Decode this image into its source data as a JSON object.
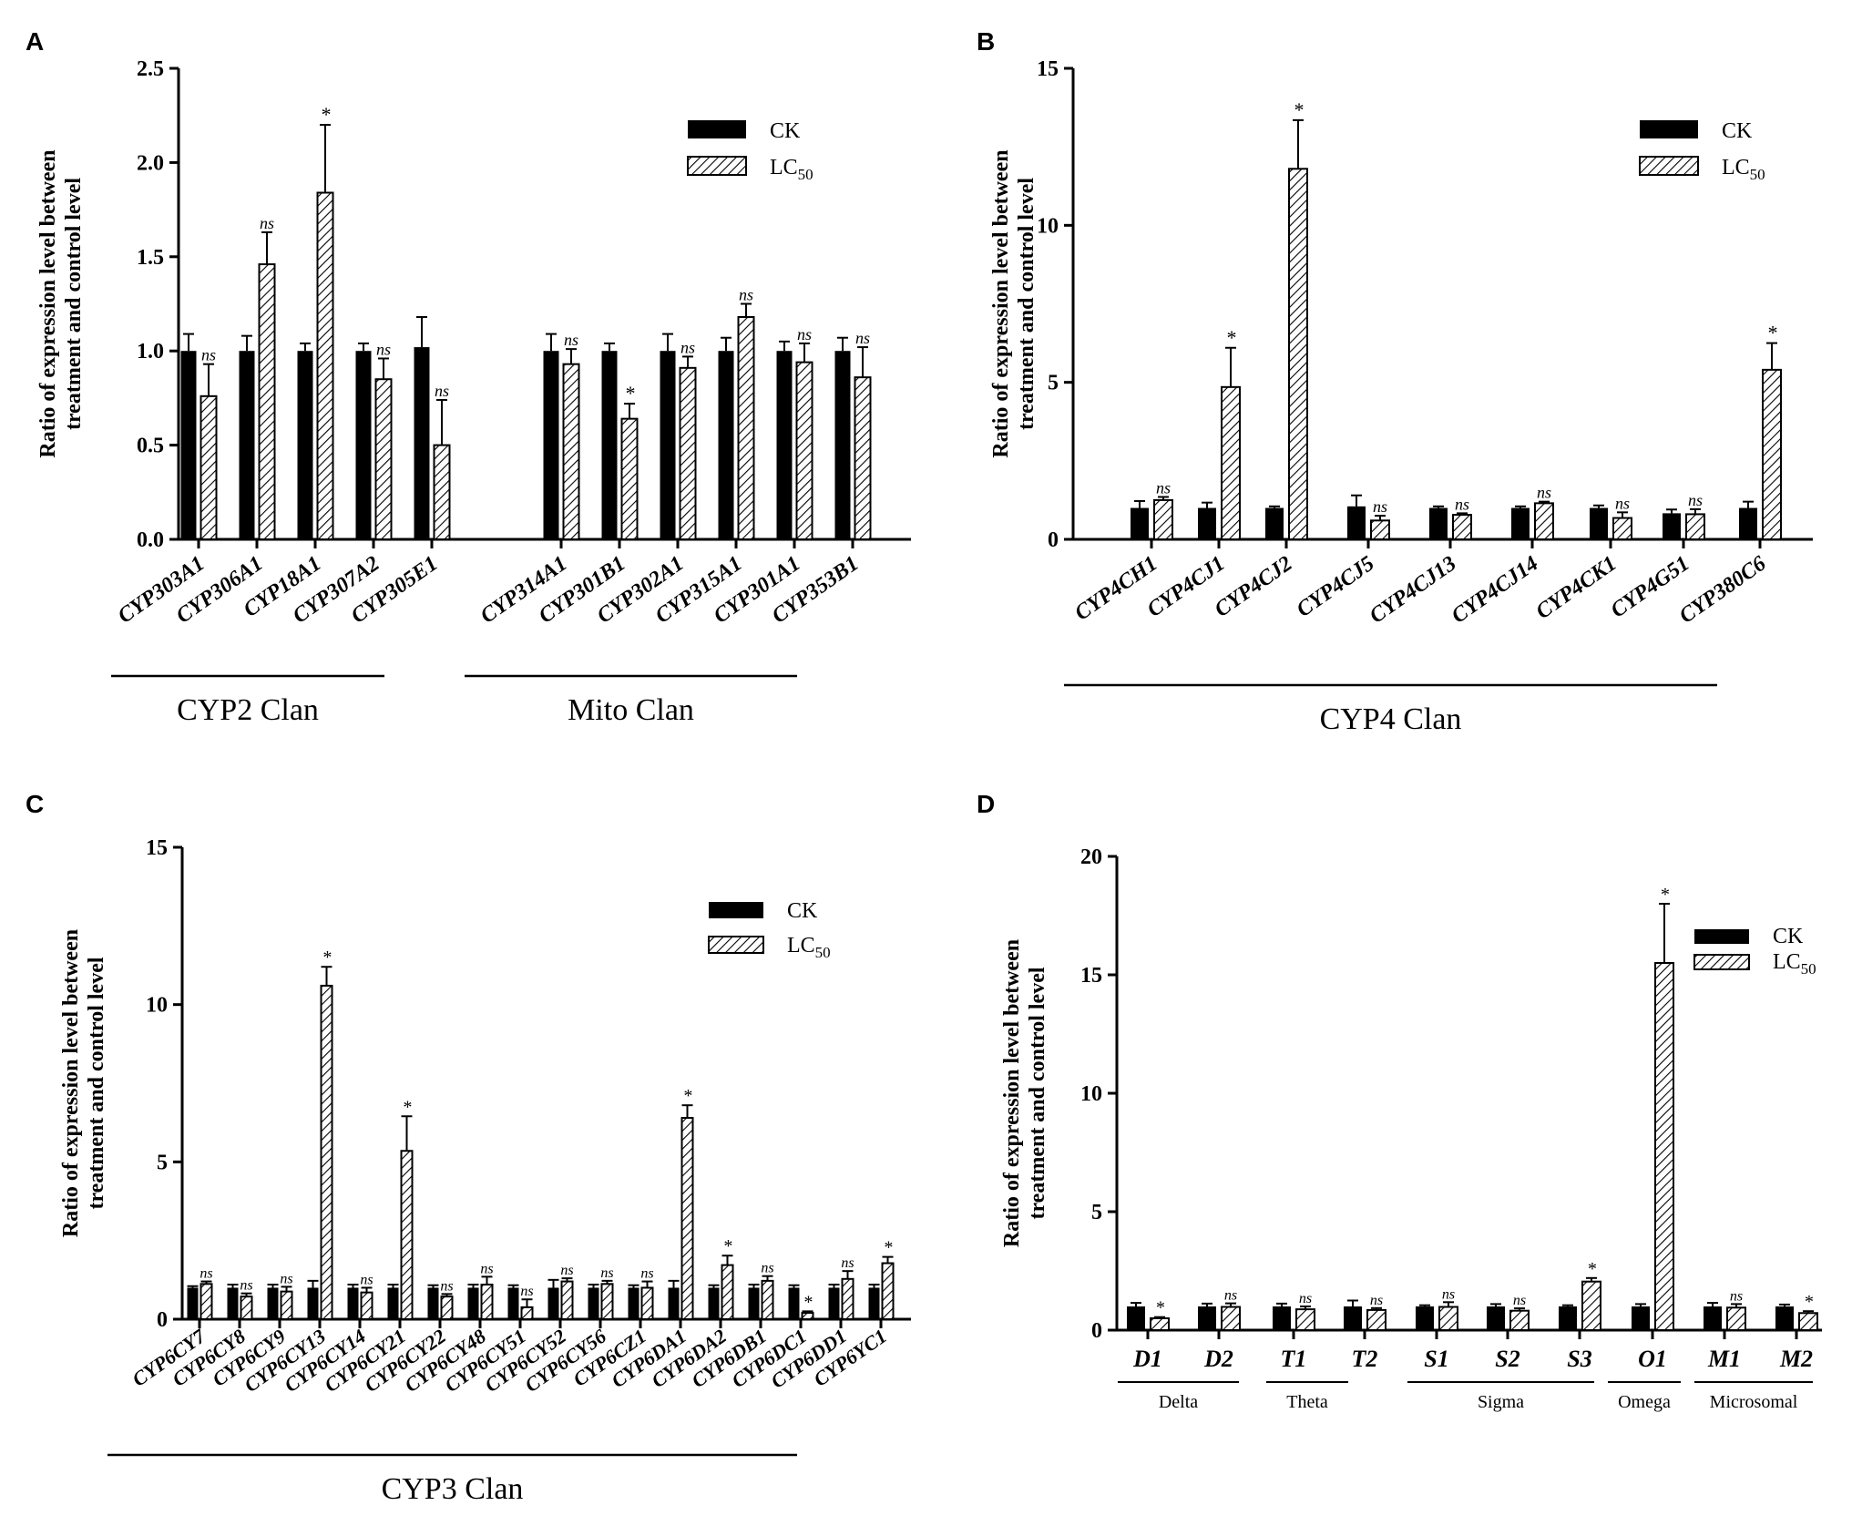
{
  "chart_data": [
    {
      "type": "bar",
      "panel": "A",
      "ylabel_line1": "Ratio of expression level between",
      "ylabel_line2": "treatment and control level",
      "ylim": [
        0,
        2.5
      ],
      "yticks": [
        "0.0",
        "0.5",
        "1.0",
        "1.5",
        "2.0",
        "2.5"
      ],
      "legend": {
        "ck": "CK",
        "lc_main": "LC",
        "lc_sub": "50"
      },
      "categories": [
        "CYP303A1",
        "CYP306A1",
        "CYP18A1",
        "CYP307A2",
        "CYP305E1",
        "CYP314A1",
        "CYP301B1",
        "CYP302A1",
        "CYP315A1",
        "CYP301A1",
        "CYP353B1"
      ],
      "series": [
        {
          "name": "CK",
          "values": [
            1.0,
            1.0,
            1.0,
            1.0,
            1.02,
            1.0,
            1.0,
            1.0,
            1.0,
            1.0,
            1.0
          ],
          "errors": [
            0.09,
            0.08,
            0.04,
            0.04,
            0.16,
            0.09,
            0.04,
            0.09,
            0.07,
            0.05,
            0.07
          ]
        },
        {
          "name": "LC50",
          "values": [
            0.76,
            1.46,
            1.84,
            0.85,
            0.5,
            0.93,
            0.64,
            0.91,
            1.18,
            0.94,
            0.86
          ],
          "errors": [
            0.17,
            0.17,
            0.36,
            0.11,
            0.24,
            0.08,
            0.08,
            0.06,
            0.07,
            0.1,
            0.16
          ]
        }
      ],
      "sig": [
        "ns",
        "ns",
        "*",
        "ns",
        "ns",
        "ns",
        "*",
        "ns",
        "ns",
        "ns",
        "ns"
      ],
      "clans": [
        {
          "label": "CYP2 Clan"
        },
        {
          "label": "Mito Clan"
        }
      ]
    },
    {
      "type": "bar",
      "panel": "B",
      "ylabel_line1": "Ratio of expression level between",
      "ylabel_line2": "treatment and control level",
      "ylim": [
        0,
        15
      ],
      "yticks": [
        "0",
        "5",
        "10",
        "15"
      ],
      "legend": {
        "ck": "CK",
        "lc_main": "LC",
        "lc_sub": "50"
      },
      "categories": [
        "CYP4CH1",
        "CYP4CJ1",
        "CYP4CJ2",
        "CYP4CJ5",
        "CYP4CJ13",
        "CYP4CJ14",
        "CYP4CK1",
        "CYP4G51",
        "CYP380C6"
      ],
      "series": [
        {
          "name": "CK",
          "values": [
            1.0,
            1.0,
            1.0,
            1.05,
            1.0,
            1.0,
            1.0,
            0.83,
            1.0
          ],
          "errors": [
            0.22,
            0.17,
            0.05,
            0.35,
            0.05,
            0.05,
            0.08,
            0.12,
            0.2
          ]
        },
        {
          "name": "LC50",
          "values": [
            1.25,
            4.85,
            11.8,
            0.6,
            0.78,
            1.15,
            0.68,
            0.8,
            5.4
          ],
          "errors": [
            0.1,
            1.25,
            1.55,
            0.15,
            0.05,
            0.05,
            0.18,
            0.16,
            0.85
          ]
        }
      ],
      "sig": [
        "ns",
        "*",
        "*",
        "ns",
        "ns",
        "ns",
        "ns",
        "ns",
        "*"
      ],
      "clans": [
        {
          "label": "CYP4 Clan"
        }
      ]
    },
    {
      "type": "bar",
      "panel": "C",
      "ylabel_line1": "Ratio of expression level between",
      "ylabel_line2": "treatment and control level",
      "ylim": [
        0,
        15
      ],
      "yticks": [
        "0",
        "5",
        "10",
        "15"
      ],
      "legend": {
        "ck": "CK",
        "lc_main": "LC",
        "lc_sub": "50"
      },
      "categories": [
        "CYP6CY7",
        "CYP6CY8",
        "CYP6CY9",
        "CYP6CY13",
        "CYP6CY14",
        "CYP6CY21",
        "CYP6CY22",
        "CYP6CY48",
        "CYP6CY51",
        "CYP6CY52",
        "CYP6CY56",
        "CYP6CZ1",
        "CYP6DA1",
        "CYP6DA2",
        "CYP6DB1",
        "CYP6DC1",
        "CYP6DD1",
        "CYP6YC1"
      ],
      "series": [
        {
          "name": "CK",
          "values": [
            1.0,
            1.0,
            1.0,
            1.0,
            1.0,
            1.0,
            1.0,
            1.0,
            1.0,
            1.0,
            1.0,
            1.0,
            1.0,
            1.0,
            1.0,
            1.0,
            1.0,
            1.0
          ],
          "errors": [
            0.05,
            0.1,
            0.1,
            0.22,
            0.1,
            0.1,
            0.08,
            0.1,
            0.08,
            0.25,
            0.1,
            0.08,
            0.22,
            0.08,
            0.1,
            0.08,
            0.1,
            0.1
          ]
        },
        {
          "name": "LC50",
          "values": [
            1.12,
            0.72,
            0.88,
            10.6,
            0.85,
            5.35,
            0.72,
            1.1,
            0.38,
            1.2,
            1.12,
            1.0,
            6.4,
            1.72,
            1.22,
            0.2,
            1.28,
            1.78
          ],
          "errors": [
            0.08,
            0.1,
            0.15,
            0.6,
            0.15,
            1.1,
            0.08,
            0.25,
            0.25,
            0.1,
            0.1,
            0.2,
            0.4,
            0.3,
            0.15,
            0.05,
            0.25,
            0.2
          ]
        }
      ],
      "sig": [
        "ns",
        "ns",
        "ns",
        "*",
        "ns",
        "*",
        "ns",
        "ns",
        "ns",
        "ns",
        "ns",
        "ns",
        "*",
        "*",
        "ns",
        "*",
        "ns",
        "*"
      ],
      "clans": [
        {
          "label": "CYP3 Clan"
        }
      ]
    },
    {
      "type": "bar",
      "panel": "D",
      "ylabel_line1": "Ratio of expression level between",
      "ylabel_line2": "treatment and control level",
      "ylim": [
        0,
        20
      ],
      "yticks": [
        "0",
        "5",
        "10",
        "15",
        "20"
      ],
      "legend": {
        "ck": "CK",
        "lc_main": "LC",
        "lc_sub": "50"
      },
      "categories": [
        "D1",
        "D2",
        "T1",
        "T2",
        "S1",
        "S2",
        "S3",
        "O1",
        "M1",
        "M2"
      ],
      "series": [
        {
          "name": "CK",
          "values": [
            1.0,
            1.0,
            1.0,
            1.0,
            1.0,
            1.0,
            1.0,
            1.0,
            1.0,
            1.0
          ],
          "errors": [
            0.15,
            0.12,
            0.12,
            0.25,
            0.05,
            0.1,
            0.05,
            0.1,
            0.15,
            0.08
          ]
        },
        {
          "name": "LC50",
          "values": [
            0.5,
            0.98,
            0.88,
            0.85,
            0.98,
            0.82,
            2.05,
            15.5,
            0.95,
            0.72
          ],
          "errors": [
            0.05,
            0.15,
            0.12,
            0.08,
            0.2,
            0.1,
            0.15,
            2.5,
            0.15,
            0.08
          ]
        }
      ],
      "sig": [
        "*",
        "ns",
        "ns",
        "ns",
        "ns",
        "ns",
        "*",
        "*",
        "ns",
        "*"
      ],
      "groups": [
        {
          "label": "Delta"
        },
        {
          "label": "Theta"
        },
        {
          "label": "Sigma"
        },
        {
          "label": "Omega"
        },
        {
          "label": "Microsomal"
        }
      ]
    }
  ],
  "panel_letters": [
    "A",
    "B",
    "C",
    "D"
  ]
}
